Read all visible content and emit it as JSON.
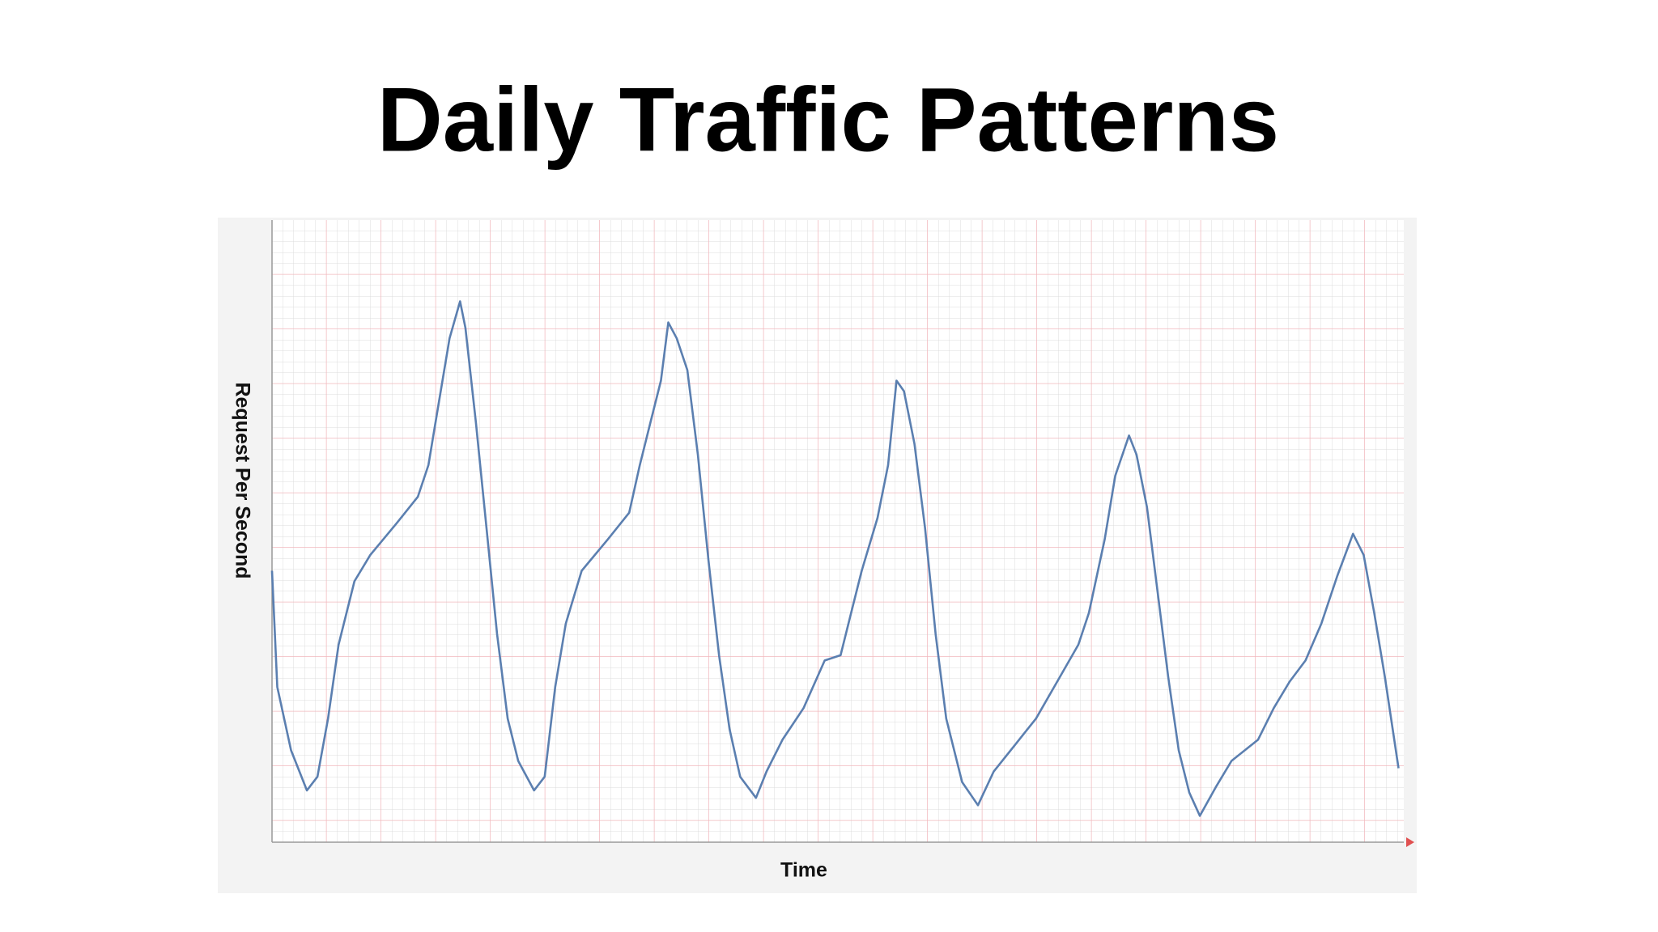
{
  "chart_data": {
    "type": "line",
    "title": "Daily Traffic Patterns",
    "x_label": "Time",
    "y_label": "Request Per Second",
    "xlim": [
      0,
      1071
    ],
    "ylim": [
      0,
      589
    ],
    "x": [
      0,
      5,
      18,
      33,
      43,
      53,
      63,
      78,
      93,
      118,
      138,
      148,
      158,
      168,
      178,
      183,
      193,
      203,
      213,
      223,
      233,
      248,
      258,
      268,
      278,
      293,
      318,
      338,
      348,
      358,
      368,
      375,
      383,
      393,
      403,
      413,
      423,
      433,
      443,
      458,
      468,
      483,
      503,
      523,
      538,
      548,
      558,
      573,
      583,
      591,
      598,
      608,
      618,
      628,
      638,
      653,
      668,
      683,
      703,
      723,
      743,
      763,
      773,
      788,
      798,
      811,
      818,
      828,
      838,
      848,
      858,
      868,
      878,
      893,
      908,
      933,
      948,
      963,
      978,
      993,
      1008,
      1023,
      1033,
      1043,
      1053,
      1066
    ],
    "series": [
      {
        "name": "Request Per Second",
        "color": "#5b7fb0",
        "values": [
          257,
          147,
          87,
          49,
          62,
          117,
          187,
          247,
          272,
          302,
          327,
          357,
          417,
          477,
          512,
          487,
          397,
          297,
          197,
          117,
          77,
          49,
          62,
          147,
          207,
          257,
          287,
          312,
          357,
          397,
          437,
          492,
          477,
          447,
          367,
          267,
          177,
          107,
          62,
          42,
          67,
          97,
          127,
          172,
          177,
          217,
          257,
          307,
          357,
          437,
          427,
          377,
          297,
          197,
          117,
          57,
          35,
          67,
          92,
          117,
          152,
          187,
          217,
          287,
          347,
          385,
          367,
          317,
          237,
          157,
          87,
          47,
          25,
          52,
          77,
          97,
          127,
          152,
          172,
          207,
          252,
          292,
          272,
          217,
          157,
          70
        ]
      }
    ]
  }
}
